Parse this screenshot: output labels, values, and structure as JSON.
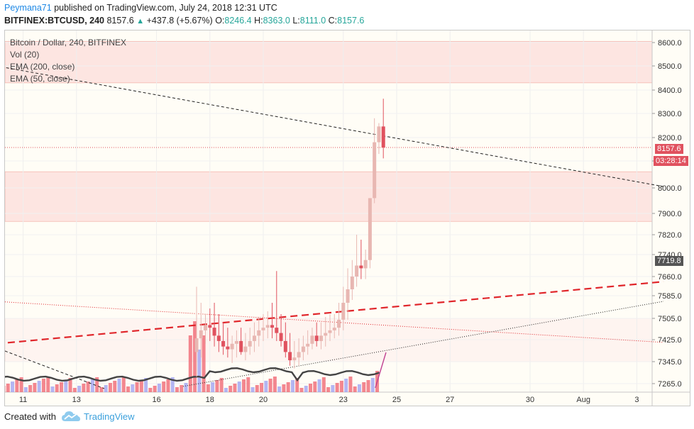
{
  "header": {
    "author": "Peymana71",
    "published_text": " published on TradingView.com, July 24, 2018 12:31 UTC",
    "symbol_label": "BITFINEX:BTCUSD, 240",
    "last_price": "8157.6",
    "change": "+437.8 (+5.67%)",
    "ohlc": [
      {
        "key": "O:",
        "value": "8246.4"
      },
      {
        "key": "H:",
        "value": "8363.0"
      },
      {
        "key": "L:",
        "value": "8111.0"
      },
      {
        "key": "C:",
        "value": "8157.6"
      }
    ]
  },
  "legend": {
    "title": "Bitcoin / Dollar, 240, BITFINEX",
    "vol": "Vol (20)",
    "ema200": "EMA (200, close)",
    "ema50": "EMA (50, close)"
  },
  "price_labels": {
    "current_price": "8157.6",
    "countdown": "03:28:14",
    "ema_value": "7719.8"
  },
  "footer": {
    "created_with": "Created with",
    "brand": "TradingView"
  },
  "colors": {
    "up_candle": "#e8b7b2",
    "down_candle": "#e0525f",
    "zone_fill": "#fde0dd",
    "price_tag": "#e0525f",
    "ema_tag": "#555555",
    "brand": "#3ba0dc"
  },
  "chart_data": {
    "type": "candlestick",
    "title": "Bitcoin / Dollar, 240, BITFINEX",
    "y_ticks": [
      8600,
      8500,
      8400,
      8300,
      8200,
      8100,
      8000,
      7900,
      7820,
      7740,
      7660,
      7585,
      7505,
      7425,
      7345,
      7265
    ],
    "y_tick_labels": [
      "8600.0",
      "8500.0",
      "8400.0",
      "8300.0",
      "8200.0",
      "8100.0",
      "8000.0",
      "7900.0",
      "7820.0",
      "7740.0",
      "7660.0",
      "7585.0",
      "7505.0",
      "7425.0",
      "7345.0",
      "7265.0"
    ],
    "x_tick_labels": [
      "11",
      "13",
      "16",
      "18",
      "20",
      "23",
      "25",
      "27",
      "30",
      "Aug",
      "3"
    ],
    "resistance_zones": [
      [
        8430,
        8605
      ],
      [
        7870,
        8060
      ]
    ],
    "support_zones": [
      [
        7505,
        7345
      ]
    ],
    "current_price": 8157.6,
    "candles_4h": {
      "times": [
        "Jul 17 12:00",
        "Jul 17 16:00",
        "Jul 17 20:00",
        "Jul 18 00:00",
        "Jul 18 04:00",
        "Jul 18 08:00",
        "Jul 18 12:00",
        "Jul 18 16:00",
        "Jul 18 20:00",
        "Jul 19 00:00",
        "Jul 19 04:00",
        "Jul 19 08:00",
        "Jul 19 12:00",
        "Jul 19 16:00",
        "Jul 19 20:00",
        "Jul 20 00:00",
        "Jul 20 04:00",
        "Jul 20 08:00",
        "Jul 20 12:00",
        "Jul 20 16:00",
        "Jul 20 20:00",
        "Jul 21 00:00",
        "Jul 21 04:00",
        "Jul 21 08:00",
        "Jul 21 12:00",
        "Jul 21 16:00",
        "Jul 21 20:00",
        "Jul 22 00:00",
        "Jul 22 04:00",
        "Jul 22 08:00",
        "Jul 22 12:00",
        "Jul 22 16:00",
        "Jul 22 20:00",
        "Jul 23 00:00",
        "Jul 23 04:00",
        "Jul 23 08:00",
        "Jul 23 12:00",
        "Jul 23 16:00",
        "Jul 23 20:00",
        "Jul 24 00:00",
        "Jul 24 04:00",
        "Jul 24 08:00",
        "Jul 24 12:00"
      ],
      "open": [
        7380,
        7430,
        7460,
        7480,
        7470,
        7440,
        7420,
        7400,
        7390,
        7410,
        7420,
        7380,
        7400,
        7420,
        7440,
        7460,
        7470,
        7480,
        7470,
        7450,
        7420,
        7380,
        7350,
        7360,
        7380,
        7400,
        7410,
        7440,
        7420,
        7440,
        7450,
        7460,
        7470,
        7500,
        7560,
        7610,
        7660,
        7700,
        7690,
        7720,
        7960,
        8180,
        8246
      ],
      "high": [
        7620,
        7560,
        7520,
        7540,
        7560,
        7520,
        7490,
        7470,
        7440,
        7460,
        7470,
        7450,
        7470,
        7490,
        7510,
        7520,
        7530,
        7560,
        7680,
        7520,
        7490,
        7450,
        7420,
        7430,
        7440,
        7460,
        7470,
        7490,
        7490,
        7510,
        7520,
        7520,
        7560,
        7620,
        7690,
        7720,
        7820,
        7800,
        7760,
        7950,
        8280,
        8260,
        8363
      ],
      "low": [
        7290,
        7360,
        7410,
        7420,
        7400,
        7380,
        7370,
        7360,
        7340,
        7360,
        7370,
        7350,
        7370,
        7380,
        7400,
        7420,
        7430,
        7430,
        7420,
        7400,
        7360,
        7330,
        7320,
        7330,
        7350,
        7370,
        7390,
        7400,
        7390,
        7400,
        7420,
        7430,
        7440,
        7460,
        7500,
        7570,
        7620,
        7650,
        7650,
        7690,
        7940,
        8130,
        8111
      ],
      "close": [
        7430,
        7460,
        7480,
        7470,
        7440,
        7420,
        7400,
        7390,
        7410,
        7420,
        7380,
        7400,
        7420,
        7440,
        7460,
        7470,
        7480,
        7470,
        7450,
        7420,
        7380,
        7350,
        7360,
        7380,
        7400,
        7410,
        7440,
        7420,
        7440,
        7450,
        7460,
        7470,
        7500,
        7560,
        7610,
        7660,
        7700,
        7690,
        7720,
        7960,
        8180,
        8246,
        8157.6
      ]
    },
    "trendlines": [
      {
        "name": "descending resistance (black dashed)",
        "from": [
          "Jul 10",
          8500
        ],
        "to": [
          "Aug 4",
          8005
        ]
      },
      {
        "name": "ascending support (red dashed)",
        "from": [
          "Jul 10",
          7410
        ],
        "to": [
          "Aug 4",
          7640
        ]
      },
      {
        "name": "descending (red dotted)",
        "from": [
          "Jul 10",
          7565
        ],
        "to": [
          "Aug 4",
          7415
        ]
      },
      {
        "name": "ascending (black dotted)",
        "from": [
          "Jul 17",
          7255
        ],
        "to": [
          "Aug 4",
          7565
        ]
      }
    ],
    "ema_50_value": 7719.8
  }
}
